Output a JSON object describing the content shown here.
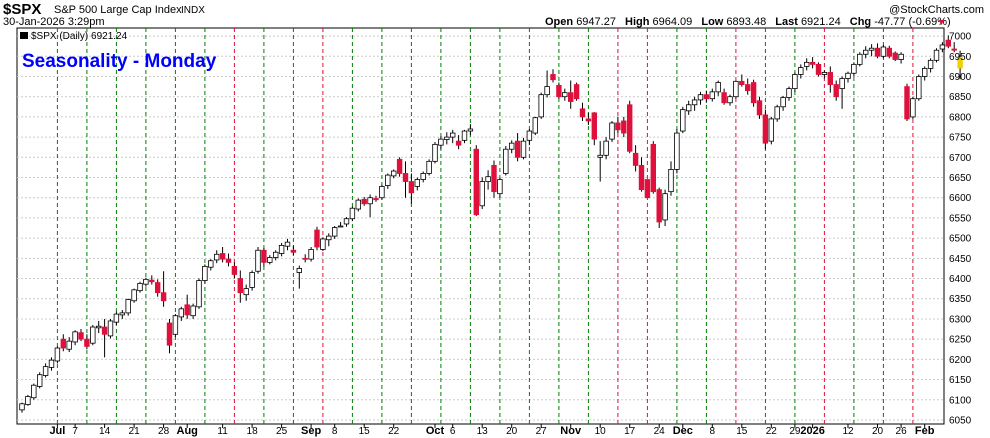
{
  "header": {
    "symbol": "$SPX",
    "name": "S&P 500 Large Cap Index",
    "exchange": "INDX",
    "datetime": "30-Jan-2026 3:29pm",
    "open_label": "Open",
    "open": "6947.27",
    "high_label": "High",
    "high": "6964.09",
    "low_label": "Low",
    "low": "6893.48",
    "last_label": "Last",
    "last": "6921.24",
    "chg_label": "Chg",
    "chg": "-47.77 (-0.69%)",
    "down_arrow": "▼",
    "watermark": "@StockCharts.com"
  },
  "legend": {
    "series": "$SPX (Daily) 6921.24"
  },
  "annotation": "Seasonality - Monday",
  "colors": {
    "up_fill": "#ffffff",
    "down_fill": "#e0103c",
    "candle_outline": "#000000",
    "outside_down": "#000000",
    "last_candle": "#f0d000",
    "green_line": "#008000",
    "red_line": "#e0103c",
    "grid": "#cccccc",
    "title_blue": "#0000ff"
  },
  "chart_data": {
    "type": "candlestick",
    "title": "Seasonality - Monday",
    "y_range": [
      6040,
      7020
    ],
    "y_ticks": [
      6050,
      6100,
      6150,
      6200,
      6250,
      6300,
      6350,
      6400,
      6450,
      6500,
      6550,
      6600,
      6650,
      6700,
      6750,
      6800,
      6850,
      6900,
      6950,
      7000
    ],
    "x_labels": [
      {
        "label": "Jul",
        "month": true,
        "i": 6
      },
      {
        "label": "7",
        "month": false,
        "i": 9
      },
      {
        "label": "14",
        "month": false,
        "i": 14
      },
      {
        "label": "21",
        "month": false,
        "i": 19
      },
      {
        "label": "28",
        "month": false,
        "i": 24
      },
      {
        "label": "Aug",
        "month": true,
        "i": 28
      },
      {
        "label": "11",
        "month": false,
        "i": 34
      },
      {
        "label": "18",
        "month": false,
        "i": 39
      },
      {
        "label": "25",
        "month": false,
        "i": 44
      },
      {
        "label": "Sep",
        "month": true,
        "i": 49
      },
      {
        "label": "8",
        "month": false,
        "i": 53
      },
      {
        "label": "15",
        "month": false,
        "i": 58
      },
      {
        "label": "22",
        "month": false,
        "i": 63
      },
      {
        "label": "Oct",
        "month": true,
        "i": 70
      },
      {
        "label": "6",
        "month": false,
        "i": 73
      },
      {
        "label": "13",
        "month": false,
        "i": 78
      },
      {
        "label": "20",
        "month": false,
        "i": 83
      },
      {
        "label": "27",
        "month": false,
        "i": 88
      },
      {
        "label": "Nov",
        "month": true,
        "i": 93
      },
      {
        "label": "10",
        "month": false,
        "i": 98
      },
      {
        "label": "17",
        "month": false,
        "i": 103
      },
      {
        "label": "24",
        "month": false,
        "i": 108
      },
      {
        "label": "Dec",
        "month": true,
        "i": 112
      },
      {
        "label": "8",
        "month": false,
        "i": 117
      },
      {
        "label": "15",
        "month": false,
        "i": 122
      },
      {
        "label": "22",
        "month": false,
        "i": 127
      },
      {
        "label": "29",
        "month": false,
        "i": 131
      },
      {
        "label": "2026",
        "month": true,
        "i": 134
      },
      {
        "label": "12",
        "month": false,
        "i": 140
      },
      {
        "label": "20",
        "month": false,
        "i": 145
      },
      {
        "label": "26",
        "month": false,
        "i": 149
      },
      {
        "label": "Feb",
        "month": true,
        "i": 153
      }
    ],
    "green_lines": [
      6,
      11,
      16,
      21,
      26,
      31,
      41,
      46,
      56,
      61,
      66,
      71,
      76,
      81,
      86,
      91,
      96,
      111,
      116,
      126,
      131,
      141,
      146
    ],
    "red_lines": [
      36,
      51,
      101,
      106,
      121,
      136,
      151
    ],
    "candles": [
      [
        6075,
        6093,
        6068,
        6090
      ],
      [
        6088,
        6112,
        6085,
        6108
      ],
      [
        6105,
        6140,
        6100,
        6136
      ],
      [
        6133,
        6168,
        6128,
        6162
      ],
      [
        6160,
        6190,
        6155,
        6182
      ],
      [
        6180,
        6205,
        6172,
        6198
      ],
      [
        6196,
        6232,
        6190,
        6228
      ],
      [
        6250,
        6262,
        6220,
        6228
      ],
      [
        6225,
        6255,
        6218,
        6245
      ],
      [
        6243,
        6272,
        6235,
        6268
      ],
      [
        6266,
        6275,
        6245,
        6250
      ],
      [
        6250,
        6262,
        6225,
        6232
      ],
      [
        6240,
        6285,
        6235,
        6280
      ],
      [
        6278,
        6295,
        6265,
        6282
      ],
      [
        6280,
        6300,
        6205,
        6262
      ],
      [
        6258,
        6300,
        6252,
        6295
      ],
      [
        6292,
        6318,
        6285,
        6312
      ],
      [
        6310,
        6322,
        6300,
        6315
      ],
      [
        6315,
        6350,
        6308,
        6348
      ],
      [
        6345,
        6375,
        6340,
        6372
      ],
      [
        6370,
        6392,
        6365,
        6388
      ],
      [
        6386,
        6402,
        6380,
        6398
      ],
      [
        6396,
        6408,
        6385,
        6392
      ],
      [
        6390,
        6398,
        6355,
        6365
      ],
      [
        6365,
        6418,
        6330,
        6345
      ],
      [
        6290,
        6300,
        6215,
        6235
      ],
      [
        6262,
        6312,
        6255,
        6308
      ],
      [
        6305,
        6330,
        6295,
        6325
      ],
      [
        6335,
        6360,
        6300,
        6310
      ],
      [
        6308,
        6338,
        6300,
        6332
      ],
      [
        6330,
        6400,
        6325,
        6395
      ],
      [
        6395,
        6435,
        6388,
        6430
      ],
      [
        6428,
        6448,
        6420,
        6444
      ],
      [
        6446,
        6470,
        6438,
        6460
      ],
      [
        6462,
        6478,
        6440,
        6448
      ],
      [
        6448,
        6462,
        6430,
        6440
      ],
      [
        6430,
        6440,
        6400,
        6410
      ],
      [
        6400,
        6420,
        6340,
        6365
      ],
      [
        6360,
        6385,
        6345,
        6375
      ],
      [
        6378,
        6420,
        6370,
        6415
      ],
      [
        6418,
        6478,
        6412,
        6470
      ],
      [
        6470,
        6476,
        6430,
        6440
      ],
      [
        6440,
        6458,
        6435,
        6452
      ],
      [
        6452,
        6470,
        6445,
        6465
      ],
      [
        6462,
        6488,
        6455,
        6482
      ],
      [
        6480,
        6498,
        6470,
        6490
      ],
      [
        6470,
        6482,
        6458,
        6465
      ],
      [
        6415,
        6432,
        6375,
        6425
      ],
      [
        6450,
        6460,
        6440,
        6448
      ],
      [
        6448,
        6478,
        6442,
        6472
      ],
      [
        6520,
        6528,
        6470,
        6478
      ],
      [
        6472,
        6502,
        6468,
        6498
      ],
      [
        6496,
        6512,
        6480,
        6505
      ],
      [
        6505,
        6530,
        6498,
        6526
      ],
      [
        6528,
        6540,
        6530,
        6530
      ],
      [
        6535,
        6552,
        6528,
        6548
      ],
      [
        6548,
        6578,
        6542,
        6574
      ],
      [
        6572,
        6598,
        6566,
        6594
      ],
      [
        6596,
        6602,
        6580,
        6585
      ],
      [
        6585,
        6608,
        6552,
        6600
      ],
      [
        6598,
        6605,
        6590,
        6595
      ],
      [
        6600,
        6632,
        6595,
        6628
      ],
      [
        6630,
        6660,
        6622,
        6656
      ],
      [
        6654,
        6670,
        6648,
        6666
      ],
      [
        6695,
        6700,
        6652,
        6660
      ],
      [
        6660,
        6690,
        6600,
        6640
      ],
      [
        6640,
        6660,
        6585,
        6612
      ],
      [
        6628,
        6650,
        6618,
        6645
      ],
      [
        6645,
        6665,
        6638,
        6660
      ],
      [
        6660,
        6695,
        6655,
        6690
      ],
      [
        6690,
        6738,
        6685,
        6732
      ],
      [
        6730,
        6752,
        6720,
        6745
      ],
      [
        6744,
        6762,
        6732,
        6750
      ],
      [
        6750,
        6768,
        6735,
        6760
      ],
      [
        6740,
        6755,
        6720,
        6730
      ],
      [
        6742,
        6768,
        6735,
        6765
      ],
      [
        6765,
        6782,
        6755,
        6770
      ],
      [
        6720,
        6730,
        6555,
        6558
      ],
      [
        6580,
        6650,
        6572,
        6640
      ],
      [
        6640,
        6668,
        6620,
        6652
      ],
      [
        6680,
        6692,
        6600,
        6615
      ],
      [
        6610,
        6650,
        6600,
        6645
      ],
      [
        6660,
        6728,
        6655,
        6720
      ],
      [
        6720,
        6742,
        6710,
        6735
      ],
      [
        6740,
        6760,
        6690,
        6700
      ],
      [
        6700,
        6748,
        6695,
        6740
      ],
      [
        6742,
        6770,
        6730,
        6765
      ],
      [
        6760,
        6800,
        6755,
        6798
      ],
      [
        6800,
        6860,
        6795,
        6855
      ],
      [
        6855,
        6915,
        6848,
        6875
      ],
      [
        6905,
        6918,
        6885,
        6892
      ],
      [
        6878,
        6885,
        6845,
        6850
      ],
      [
        6850,
        6870,
        6840,
        6860
      ],
      [
        6860,
        6890,
        6820,
        6838
      ],
      [
        6880,
        6885,
        6840,
        6845
      ],
      [
        6820,
        6835,
        6790,
        6800
      ],
      [
        6795,
        6810,
        6780,
        6790
      ],
      [
        6810,
        6812,
        6730,
        6745
      ],
      [
        6700,
        6740,
        6640,
        6705
      ],
      [
        6705,
        6750,
        6695,
        6740
      ],
      [
        6745,
        6790,
        6738,
        6785
      ],
      [
        6785,
        6800,
        6760,
        6768
      ],
      [
        6790,
        6800,
        6750,
        6760
      ],
      [
        6830,
        6840,
        6710,
        6715
      ],
      [
        6710,
        6730,
        6665,
        6680
      ],
      [
        6680,
        6700,
        6615,
        6620
      ],
      [
        6645,
        6645,
        6600,
        6600
      ],
      [
        6732,
        6740,
        6610,
        6615
      ],
      [
        6620,
        6625,
        6525,
        6540
      ],
      [
        6545,
        6620,
        6530,
        6610
      ],
      [
        6615,
        6690,
        6605,
        6670
      ],
      [
        6670,
        6770,
        6660,
        6760
      ],
      [
        6765,
        6825,
        6760,
        6818
      ],
      [
        6815,
        6840,
        6805,
        6830
      ],
      [
        6830,
        6850,
        6815,
        6842
      ],
      [
        6842,
        6862,
        6830,
        6855
      ],
      [
        6855,
        6865,
        6835,
        6845
      ],
      [
        6845,
        6870,
        6838,
        6862
      ],
      [
        6862,
        6890,
        6852,
        6885
      ],
      [
        6860,
        6870,
        6830,
        6835
      ],
      [
        6835,
        6855,
        6828,
        6850
      ],
      [
        6850,
        6890,
        6845,
        6888
      ],
      [
        6888,
        6905,
        6875,
        6880
      ],
      [
        6880,
        6895,
        6855,
        6865
      ],
      [
        6885,
        6892,
        6825,
        6835
      ],
      [
        6840,
        6850,
        6795,
        6805
      ],
      [
        6805,
        6818,
        6720,
        6735
      ],
      [
        6740,
        6800,
        6732,
        6795
      ],
      [
        6795,
        6830,
        6788,
        6825
      ],
      [
        6825,
        6852,
        6815,
        6848
      ],
      [
        6848,
        6875,
        6840,
        6870
      ],
      [
        6870,
        6910,
        6862,
        6905
      ],
      [
        6905,
        6930,
        6895,
        6922
      ],
      [
        6925,
        6945,
        6915,
        6935
      ],
      [
        6935,
        6948,
        6920,
        6930
      ],
      [
        6930,
        6935,
        6900,
        6905
      ],
      [
        6905,
        6915,
        6895,
        6910
      ],
      [
        6910,
        6925,
        6860,
        6880
      ],
      [
        6880,
        6890,
        6840,
        6850
      ],
      [
        6870,
        6900,
        6820,
        6895
      ],
      [
        6895,
        6912,
        6885,
        6908
      ],
      [
        6908,
        6935,
        6900,
        6930
      ],
      [
        6930,
        6960,
        6925,
        6955
      ],
      [
        6955,
        6975,
        6945,
        6965
      ],
      [
        6965,
        6980,
        6950,
        6970
      ],
      [
        6970,
        6982,
        6945,
        6950
      ],
      [
        6950,
        6978,
        6945,
        6973
      ],
      [
        6970,
        6976,
        6945,
        6950
      ],
      [
        6958,
        6962,
        6938,
        6942
      ],
      [
        6942,
        6960,
        6932,
        6955
      ],
      [
        6875,
        6882,
        6790,
        6795
      ],
      [
        6800,
        6850,
        6795,
        6845
      ],
      [
        6845,
        6905,
        6840,
        6900
      ],
      [
        6900,
        6925,
        6890,
        6920
      ],
      [
        6920,
        6945,
        6910,
        6940
      ],
      [
        6940,
        6970,
        6935,
        6965
      ],
      [
        6968,
        6985,
        6960,
        6978
      ],
      [
        6990,
        7002,
        6970,
        6975
      ],
      [
        6968,
        6985,
        6960,
        6965
      ],
      [
        6947,
        6964,
        6893,
        6921
      ]
    ]
  }
}
